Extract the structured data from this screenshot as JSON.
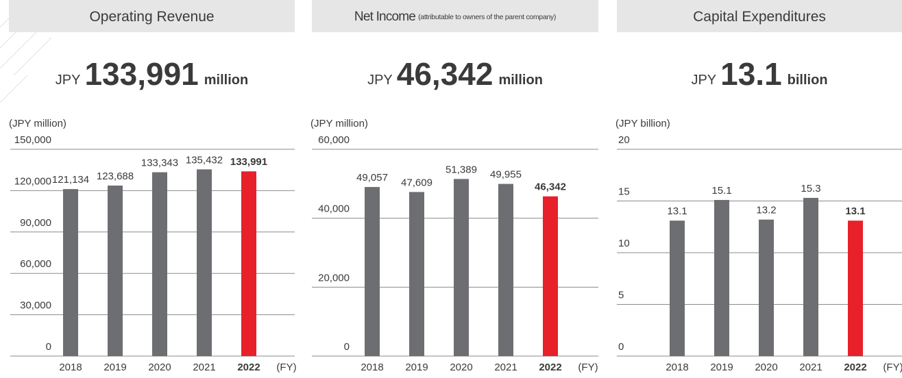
{
  "chart_data": [
    {
      "type": "bar",
      "title": "Operating Revenue",
      "headline": {
        "prefix": "JPY",
        "value": "133,991",
        "unit": "million"
      },
      "unit_label": "(JPY million)",
      "x_label": "(FY)",
      "categories": [
        "2018",
        "2019",
        "2020",
        "2021",
        "2022"
      ],
      "values": [
        121134,
        123688,
        133343,
        135432,
        133991
      ],
      "value_labels": [
        "121,134",
        "123,688",
        "133,343",
        "135,432",
        "133,991"
      ],
      "color": "#6d6e71",
      "highlight": {
        "index": 4,
        "color": "#e8202a"
      },
      "ylim": [
        0,
        150000
      ],
      "yticks": [
        0,
        {
          "value": 30000,
          "label": "30,000"
        },
        {
          "value": 60000,
          "label": "60,000"
        },
        {
          "value": 90000,
          "label": "90,000"
        },
        {
          "value": 120000,
          "label": "120,000"
        },
        {
          "value": 150000,
          "label": "150,000"
        }
      ],
      "grid": true
    },
    {
      "type": "bar",
      "title": "Net Income",
      "subtitle": "(attributable to owners of the parent company)",
      "headline": {
        "prefix": "JPY",
        "value": "46,342",
        "unit": "million"
      },
      "unit_label": "(JPY million)",
      "x_label": "(FY)",
      "categories": [
        "2018",
        "2019",
        "2020",
        "2021",
        "2022"
      ],
      "values": [
        49057,
        47609,
        51389,
        49955,
        46342
      ],
      "value_labels": [
        "49,057",
        "47,609",
        "51,389",
        "49,955",
        "46,342"
      ],
      "color": "#6d6e71",
      "highlight": {
        "index": 4,
        "color": "#e8202a"
      },
      "ylim": [
        0,
        60000
      ],
      "yticks": [
        0,
        {
          "value": 20000,
          "label": "20,000"
        },
        {
          "value": 40000,
          "label": "40,000"
        },
        {
          "value": 60000,
          "label": "60,000"
        }
      ],
      "grid": true
    },
    {
      "type": "bar",
      "title": "Capital Expenditures",
      "headline": {
        "prefix": "JPY",
        "value": "13.1",
        "unit": "billion"
      },
      "unit_label": "(JPY billion)",
      "x_label": "(FY)",
      "categories": [
        "2018",
        "2019",
        "2020",
        "2021",
        "2022"
      ],
      "values": [
        13.1,
        15.1,
        13.2,
        15.3,
        13.1
      ],
      "color": "#6d6e71",
      "highlight": {
        "index": 4,
        "color": "#e8202a"
      },
      "ylim": [
        0,
        20
      ],
      "yticks": [
        0,
        5,
        10,
        15,
        20
      ],
      "grid": true
    }
  ]
}
